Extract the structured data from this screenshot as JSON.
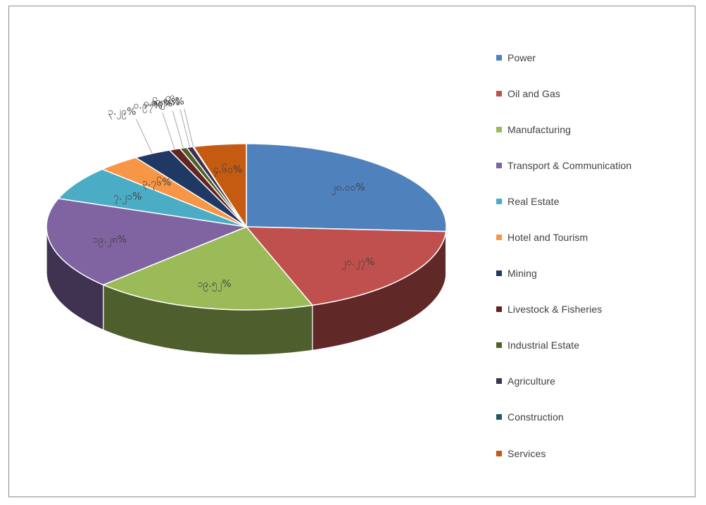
{
  "chart_data": {
    "type": "pie",
    "style": "3d-exploded-none",
    "legend_position": "right",
    "categories": [
      "Power",
      "Oil and Gas",
      "Manufacturing",
      "Transport & Communication",
      "Real Estate",
      "Hotel and Tourism",
      "Mining",
      "Livestock & Fisheries",
      "Industrial Estate",
      "Agriculture",
      "Construction",
      "Services"
    ],
    "values": [
      28.0,
      20.27,
      19.52,
      19.28,
      7.21,
      3.76,
      3.29,
      0.97,
      0.61,
      0.56,
      0.06,
      4.6
    ],
    "data_labels": [
      "၂၈.၀၀%",
      "၂၀.၂၇%",
      "၁၉.၅၂%",
      "၁၉.၂၈%",
      "၇.၂၁%",
      "၃.၇၆%",
      "၃.၂၉%",
      "၀.၉၇%",
      "၀.၆၁%",
      "၀.၅၆%",
      "၀.၀၆%",
      "၄.၆၀%"
    ],
    "colors": [
      "#4f81bd",
      "#c0504d",
      "#9bbb59",
      "#8064a2",
      "#4bacc6",
      "#f79646",
      "#1f3864",
      "#632523",
      "#4f6228",
      "#3f3151",
      "#215968",
      "#c55a11"
    ]
  }
}
